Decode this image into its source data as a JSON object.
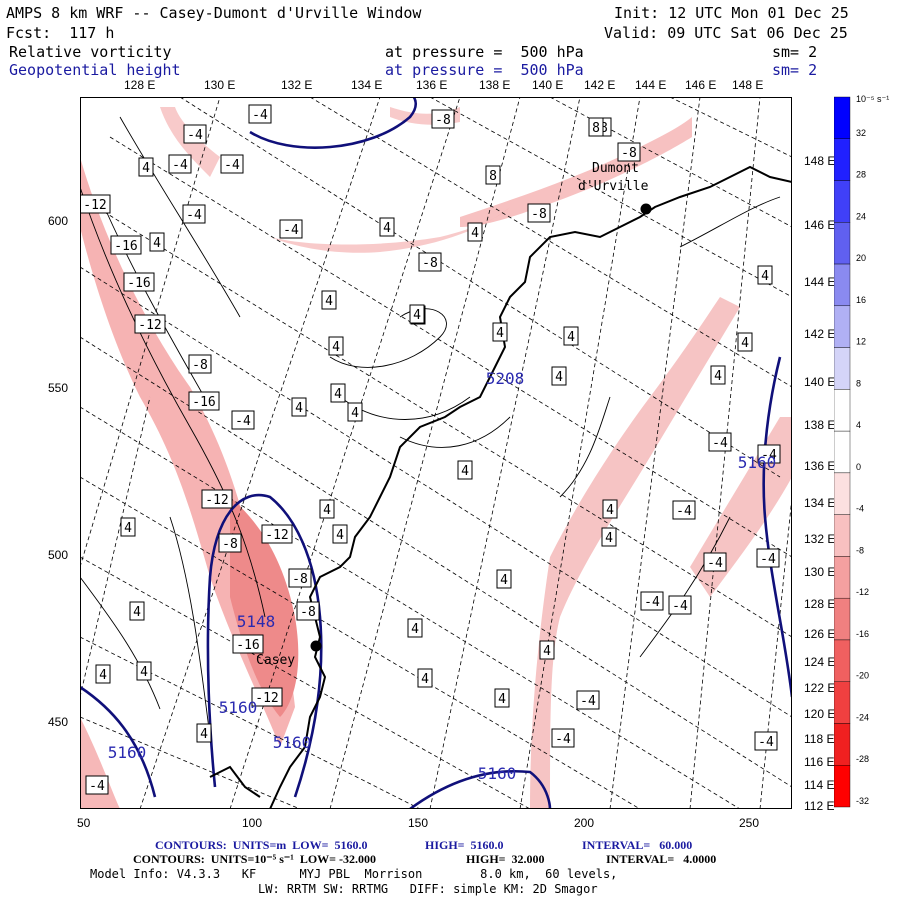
{
  "header": {
    "title": "AMPS 8 km WRF -- Casey-Dumont d'Urville Window",
    "init": "Init: 12 UTC Mon 01 Dec 25",
    "fcst": "Fcst:  117 h",
    "valid": "Valid: 09 UTC Sat 06 Dec 25",
    "field1": "Relative vorticity",
    "field1_level": "at pressure =  500 hPa",
    "field1_sm": "sm= 2",
    "field2": "Geopotential height",
    "field2_level": "at pressure =  500 hPa",
    "field2_sm": "sm= 2"
  },
  "colors": {
    "vorticity_negative": "#f08080",
    "height_contour": "#10107a",
    "coastline": "#000000"
  },
  "map": {
    "top_lon_labels": [
      "128 E",
      "130 E",
      "132 E",
      "134 E",
      "136 E",
      "138 E",
      "140 E",
      "142 E",
      "144 E",
      "146 E",
      "148 E"
    ],
    "right_lon_labels": [
      "148 E",
      "146 E",
      "144 E",
      "142 E",
      "140 E",
      "138 E",
      "136 E",
      "134 E",
      "132 E",
      "130 E",
      "128 E",
      "126 E",
      "124 E",
      "122 E",
      "120 E",
      "118 E",
      "116 E",
      "114 E",
      "112 E"
    ],
    "y_ticks": [
      "600",
      "550",
      "500",
      "450"
    ],
    "x_ticks": [
      "50",
      "100",
      "150",
      "200",
      "250"
    ],
    "stations": [
      {
        "name": "Dumont\nd'Urville"
      },
      {
        "name": "Casey"
      }
    ],
    "vort_labels": [
      "-4",
      "-4",
      "-4",
      "-4",
      "-4",
      "-4",
      "-8",
      "-8",
      "-8",
      "-8",
      "-8",
      "-12",
      "-16",
      "-16",
      "-12",
      "-8",
      "-16",
      "-4",
      "-12",
      "-12",
      "-8",
      "-8",
      "-16",
      "-12",
      "-8",
      "-4",
      "-4",
      "-4",
      "-4",
      "-4",
      "-4",
      "-4",
      "-4",
      "-4",
      "-4",
      "4",
      "4",
      "4",
      "4",
      "4",
      "4",
      "4",
      "4",
      "4",
      "4",
      "4",
      "4",
      "4",
      "4",
      "4",
      "4",
      "4",
      "4",
      "4",
      "4",
      "4",
      "4",
      "4",
      "4",
      "4",
      "4",
      "4",
      "4",
      "4",
      "4",
      "4",
      "4",
      "8",
      "8",
      "-4"
    ],
    "height_labels": [
      "5148",
      "5160",
      "5160",
      "5160",
      "5160",
      "5160",
      "5208"
    ]
  },
  "colorbar": {
    "unit_label": "10⁻⁵ s⁻¹",
    "labels": [
      "32",
      "28",
      "24",
      "20",
      "16",
      "12",
      "8",
      "4",
      "0",
      "-4",
      "-8",
      "-12",
      "-16",
      "-20",
      "-24",
      "-28",
      "-32"
    ],
    "colors": [
      "#0000ff",
      "#2020ff",
      "#4040f8",
      "#6060f0",
      "#8a8af0",
      "#b0b0f4",
      "#d4d4f8",
      "#ffffff",
      "#ffffff",
      "#fce0e0",
      "#f8c0c0",
      "#f4a0a0",
      "#f08080",
      "#f06060",
      "#f04040",
      "#f02020",
      "#ff0000"
    ]
  },
  "footer": {
    "line1_a": "CONTOURS:  UNITS=m  LOW=  5160.0",
    "line1_b": "HIGH=  5160.0",
    "line1_c": "INTERVAL=   60.000",
    "line2_a": "CONTOURS:  UNITS=10⁻⁵ s⁻¹  LOW= -32.000",
    "line2_b": "HIGH=  32.000",
    "line2_c": "INTERVAL=   4.0000",
    "line3": "Model Info: V4.3.3   KF      MYJ PBL  Morrison        8.0 km,  60 levels,",
    "line4": "LW: RRTM SW: RRTMG   DIFF: simple KM: 2D Smagor"
  }
}
